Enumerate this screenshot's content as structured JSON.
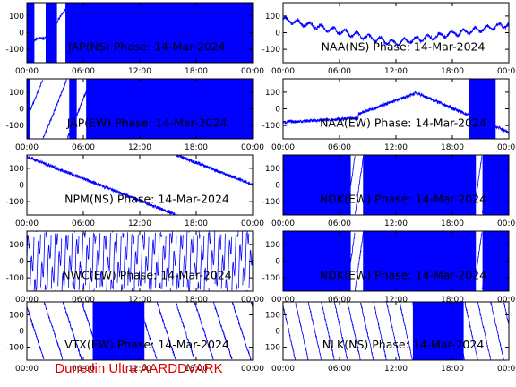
{
  "footer": "Dunedin Ultra AARDDVARK",
  "colors": {
    "trace": "#0000ff",
    "axes": "#000000",
    "footer": "#e00000"
  },
  "chart_data": [
    {
      "type": "line",
      "title": "JAP(NS) Phase: 14-Mar-2024",
      "x_ticks": [
        "00:00",
        "06:00",
        "12:00",
        "18:00",
        "00:00"
      ],
      "y_ticks": [
        "100",
        "0",
        "-100"
      ],
      "xlim": [
        0,
        24
      ],
      "ylim": [
        -180,
        180
      ],
      "x_unit": "hours UT",
      "segments": [
        [
          0,
          0.8
        ],
        [
          2.0,
          3.2
        ],
        [
          4.1,
          24
        ]
      ]
    },
    {
      "type": "line",
      "title": "NAA(NS) Phase: 14-Mar-2024",
      "x_ticks": [
        "00:00",
        "06:00",
        "12:00",
        "18:00",
        "00:00"
      ],
      "y_ticks": [
        "100",
        "0",
        "-100"
      ],
      "xlim": [
        0,
        24
      ],
      "ylim": [
        -180,
        180
      ],
      "x_unit": "hours UT"
    },
    {
      "type": "line",
      "title": "JAP(EW) Phase: 14-Mar-2024",
      "x_ticks": [
        "00:00",
        "06:00",
        "12:00",
        "18:00",
        "00:00"
      ],
      "y_ticks": [
        "100",
        "0",
        "-100"
      ],
      "xlim": [
        0,
        24
      ],
      "ylim": [
        -180,
        180
      ],
      "x_unit": "hours UT",
      "segments": [
        [
          0,
          0.3
        ],
        [
          4.5,
          5.3
        ],
        [
          6.3,
          24
        ]
      ]
    },
    {
      "type": "line",
      "title": "NAA(EW) Phase: 14-Mar-2024",
      "x_ticks": [
        "00:00",
        "06:00",
        "12:00",
        "18:00",
        "00:00"
      ],
      "y_ticks": [
        "100",
        "0",
        "-100"
      ],
      "xlim": [
        0,
        24
      ],
      "ylim": [
        -180,
        180
      ],
      "x_unit": "hours UT",
      "segments": [
        [
          19.8,
          22.6
        ]
      ]
    },
    {
      "type": "line",
      "title": "NPM(NS) Phase: 14-Mar-2024",
      "x_ticks": [
        "00:00",
        "06:00",
        "12:00",
        "18:00",
        "00:00"
      ],
      "y_ticks": [
        "100",
        "0",
        "-100"
      ],
      "xlim": [
        0,
        24
      ],
      "ylim": [
        -180,
        180
      ],
      "x_unit": "hours UT"
    },
    {
      "type": "line",
      "title": "NDK(EW) Phase: 14-Mar-2024",
      "x_ticks": [
        "00:00",
        "06:00",
        "12:00",
        "18:00",
        "00:00"
      ],
      "y_ticks": [
        "100",
        "0",
        "-100"
      ],
      "xlim": [
        0,
        24
      ],
      "ylim": [
        -180,
        180
      ],
      "x_unit": "hours UT",
      "segments": [
        [
          0,
          7.2
        ],
        [
          8.5,
          20.5
        ],
        [
          21.2,
          24
        ]
      ]
    },
    {
      "type": "line",
      "title": "NWC(EW) Phase: 14-Mar-2024",
      "x_ticks": [
        "00:00",
        "06:00",
        "12:00",
        "18:00",
        "00:00"
      ],
      "y_ticks": [
        "100",
        "0",
        "-100"
      ],
      "xlim": [
        0,
        24
      ],
      "ylim": [
        -180,
        180
      ],
      "x_unit": "hours UT"
    },
    {
      "type": "line",
      "title": "NDK(EW) Phase: 14-Mar-2024",
      "x_ticks": [
        "00:00",
        "06:00",
        "12:00",
        "18:00",
        "00:00"
      ],
      "y_ticks": [
        "100",
        "0",
        "-100"
      ],
      "xlim": [
        0,
        24
      ],
      "ylim": [
        -180,
        180
      ],
      "x_unit": "hours UT",
      "segments": [
        [
          0,
          7.2
        ],
        [
          8.5,
          20.5
        ],
        [
          21.2,
          24
        ]
      ]
    },
    {
      "type": "line",
      "title": "VTX(EW) Phase: 14-Mar-2024",
      "x_ticks": [
        "00:00",
        "06:00",
        "12:00",
        "18:00",
        "00:00"
      ],
      "y_ticks": [
        "100",
        "0",
        "-100"
      ],
      "xlim": [
        0,
        24
      ],
      "ylim": [
        -180,
        180
      ],
      "x_unit": "hours UT",
      "segments": [
        [
          7.0,
          12.5
        ]
      ]
    },
    {
      "type": "line",
      "title": "NLK(NS) Phase: 14-Mar-2024",
      "x_ticks": [
        "00:00",
        "06:00",
        "12:00",
        "18:00",
        "00:00"
      ],
      "y_ticks": [
        "100",
        "0",
        "-100"
      ],
      "xlim": [
        0,
        24
      ],
      "ylim": [
        -180,
        180
      ],
      "x_unit": "hours UT",
      "segments": [
        [
          13.8,
          19.2
        ]
      ]
    }
  ]
}
